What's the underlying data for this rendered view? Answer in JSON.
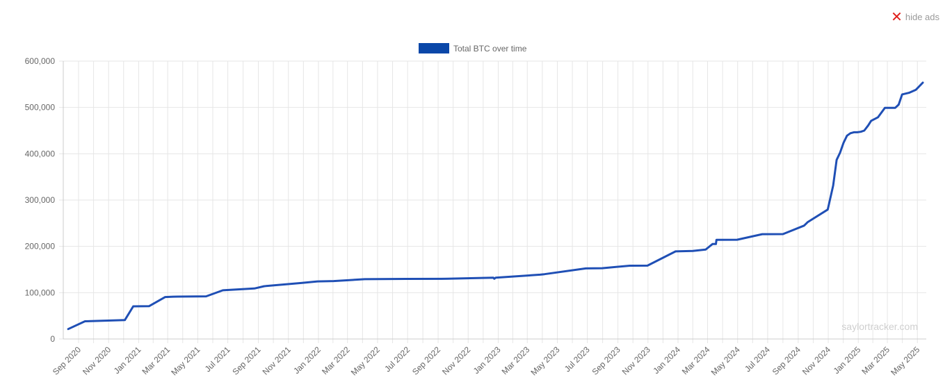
{
  "ads": {
    "hide_label": "hide ads",
    "icon": "close-icon"
  },
  "watermark": "saylortracker.com",
  "chart_data": {
    "type": "line",
    "legend": {
      "label": "Total BTC over time",
      "position": "top-center"
    },
    "grid": true,
    "colors": {
      "line": "#1f4fb5",
      "legend_box": "#0a47a8",
      "grid": "#e6e6e6",
      "axis": "#cccccc"
    },
    "ylim": [
      0,
      600000
    ],
    "y_ticks": [
      {
        "value": 0,
        "label": "0"
      },
      {
        "value": 100000,
        "label": "100,000"
      },
      {
        "value": 200000,
        "label": "200,000"
      },
      {
        "value": 300000,
        "label": "300,000"
      },
      {
        "value": 400000,
        "label": "400,000"
      },
      {
        "value": 500000,
        "label": "500,000"
      },
      {
        "value": 600000,
        "label": "600,000"
      }
    ],
    "xlim": [
      "2020-08-01",
      "2025-05-19"
    ],
    "x_ticks": [
      {
        "date": "2020-09-01",
        "label": "Sep 2020"
      },
      {
        "date": "2020-11-01",
        "label": "Nov 2020"
      },
      {
        "date": "2021-01-01",
        "label": "Jan 2021"
      },
      {
        "date": "2021-03-01",
        "label": "Mar 2021"
      },
      {
        "date": "2021-05-01",
        "label": "May 2021"
      },
      {
        "date": "2021-07-01",
        "label": "Jul 2021"
      },
      {
        "date": "2021-09-01",
        "label": "Sep 2021"
      },
      {
        "date": "2021-11-01",
        "label": "Nov 2021"
      },
      {
        "date": "2022-01-01",
        "label": "Jan 2022"
      },
      {
        "date": "2022-03-01",
        "label": "Mar 2022"
      },
      {
        "date": "2022-05-01",
        "label": "May 2022"
      },
      {
        "date": "2022-07-01",
        "label": "Jul 2022"
      },
      {
        "date": "2022-09-01",
        "label": "Sep 2022"
      },
      {
        "date": "2022-11-01",
        "label": "Nov 2022"
      },
      {
        "date": "2023-01-01",
        "label": "Jan 2023"
      },
      {
        "date": "2023-03-01",
        "label": "Mar 2023"
      },
      {
        "date": "2023-05-01",
        "label": "May 2023"
      },
      {
        "date": "2023-07-01",
        "label": "Jul 2023"
      },
      {
        "date": "2023-09-01",
        "label": "Sep 2023"
      },
      {
        "date": "2023-11-01",
        "label": "Nov 2023"
      },
      {
        "date": "2024-01-01",
        "label": "Jan 2024"
      },
      {
        "date": "2024-03-01",
        "label": "Mar 2024"
      },
      {
        "date": "2024-05-01",
        "label": "May 2024"
      },
      {
        "date": "2024-07-01",
        "label": "Jul 2024"
      },
      {
        "date": "2024-09-01",
        "label": "Sep 2024"
      },
      {
        "date": "2024-11-01",
        "label": "Nov 2024"
      },
      {
        "date": "2025-01-01",
        "label": "Jan 2025"
      },
      {
        "date": "2025-03-01",
        "label": "Mar 2025"
      },
      {
        "date": "2025-05-01",
        "label": "May 2025"
      }
    ],
    "series": [
      {
        "name": "Total BTC over time",
        "points": [
          [
            "2020-08-11",
            21454
          ],
          [
            "2020-09-14",
            38250
          ],
          [
            "2020-12-04",
            40824
          ],
          [
            "2020-12-21",
            70470
          ],
          [
            "2021-01-22",
            70784
          ],
          [
            "2021-02-24",
            90531
          ],
          [
            "2021-03-12",
            91326
          ],
          [
            "2021-05-18",
            92079
          ],
          [
            "2021-06-21",
            105085
          ],
          [
            "2021-08-24",
            108992
          ],
          [
            "2021-09-13",
            114042
          ],
          [
            "2021-11-29",
            121044
          ],
          [
            "2021-12-30",
            124391
          ],
          [
            "2022-02-01",
            125051
          ],
          [
            "2022-04-05",
            129218
          ],
          [
            "2022-06-28",
            129699
          ],
          [
            "2022-09-20",
            130000
          ],
          [
            "2022-12-22",
            132500
          ],
          [
            "2022-12-24",
            129999
          ],
          [
            "2022-12-27",
            132500
          ],
          [
            "2023-03-27",
            138955
          ],
          [
            "2023-04-05",
            140000
          ],
          [
            "2023-06-28",
            152333
          ],
          [
            "2023-07-31",
            152800
          ],
          [
            "2023-09-25",
            158245
          ],
          [
            "2023-10-31",
            158400
          ],
          [
            "2023-12-27",
            189150
          ],
          [
            "2024-01-31",
            190000
          ],
          [
            "2024-02-26",
            193000
          ],
          [
            "2024-03-11",
            205000
          ],
          [
            "2024-03-18",
            205000
          ],
          [
            "2024-03-19",
            214246
          ],
          [
            "2024-04-30",
            214400
          ],
          [
            "2024-06-20",
            226331
          ],
          [
            "2024-08-01",
            226500
          ],
          [
            "2024-09-13",
            244800
          ],
          [
            "2024-09-20",
            252220
          ],
          [
            "2024-10-31",
            279420
          ],
          [
            "2024-11-11",
            331200
          ],
          [
            "2024-11-18",
            386700
          ],
          [
            "2024-11-25",
            402100
          ],
          [
            "2024-12-02",
            423650
          ],
          [
            "2024-12-09",
            439000
          ],
          [
            "2024-12-16",
            444262
          ],
          [
            "2024-12-23",
            446400
          ],
          [
            "2024-12-30",
            446400
          ],
          [
            "2025-01-06",
            447470
          ],
          [
            "2025-01-13",
            450000
          ],
          [
            "2025-01-21",
            461000
          ],
          [
            "2025-01-27",
            471107
          ],
          [
            "2025-02-10",
            478740
          ],
          [
            "2025-02-24",
            499096
          ],
          [
            "2025-03-17",
            499226
          ],
          [
            "2025-03-24",
            506137
          ],
          [
            "2025-03-31",
            528185
          ],
          [
            "2025-04-14",
            531644
          ],
          [
            "2025-04-28",
            538200
          ],
          [
            "2025-05-12",
            553555
          ]
        ]
      }
    ]
  }
}
